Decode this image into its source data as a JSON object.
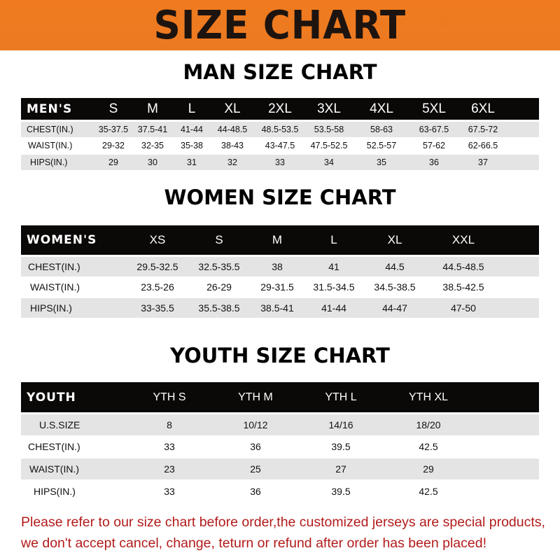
{
  "banner": {
    "title": "SIZE CHART",
    "color": "#ef7b20"
  },
  "men": {
    "title": "MAN SIZE CHART",
    "header": "MEN'S",
    "sizes": [
      "S",
      "M",
      "L",
      "XL",
      "2XL",
      "3XL",
      "4XL",
      "5XL",
      "6XL"
    ],
    "rows": [
      {
        "label": "CHEST(IN.)",
        "values": [
          "35-37.5",
          "37.5-41",
          "41-44",
          "44-48.5",
          "48.5-53.5",
          "53.5-58",
          "58-63",
          "63-67.5",
          "67.5-72"
        ]
      },
      {
        "label": "WAIST(IN.)",
        "values": [
          "29-32",
          "32-35",
          "35-38",
          "38-43",
          "43-47.5",
          "47.5-52.5",
          "52.5-57",
          "57-62",
          "62-66.5"
        ]
      },
      {
        "label": "HIPS(IN.)",
        "values": [
          "29",
          "30",
          "31",
          "32",
          "33",
          "34",
          "35",
          "36",
          "37"
        ]
      }
    ]
  },
  "women": {
    "title": "WOMEN SIZE CHART",
    "header": "WOMEN'S",
    "sizes": [
      "XS",
      "S",
      "M",
      "L",
      "XL",
      "XXL"
    ],
    "rows": [
      {
        "label": "CHEST(IN.)",
        "values": [
          "29.5-32.5",
          "32.5-35.5",
          "38",
          "41",
          "44.5",
          "44.5-48.5"
        ]
      },
      {
        "label": "WAIST(IN.)",
        "values": [
          "23.5-26",
          "26-29",
          "29-31.5",
          "31.5-34.5",
          "34.5-38.5",
          "38.5-42.5"
        ]
      },
      {
        "label": "HIPS(IN.)",
        "values": [
          "33-35.5",
          "35.5-38.5",
          "38.5-41",
          "41-44",
          "44-47",
          "47-50"
        ]
      }
    ]
  },
  "youth": {
    "title": "YOUTH SIZE CHART",
    "header": "YOUTH",
    "sizes": [
      "YTH S",
      "YTH M",
      "YTH L",
      "YTH XL"
    ],
    "rows": [
      {
        "label": "U.S.SIZE",
        "values": [
          "8",
          "10/12",
          "14/16",
          "18/20"
        ]
      },
      {
        "label": "CHEST(IN.)",
        "values": [
          "33",
          "36",
          "39.5",
          "42.5"
        ]
      },
      {
        "label": "WAIST(IN.)",
        "values": [
          "23",
          "25",
          "27",
          "29"
        ]
      },
      {
        "label": "HIPS(IN.)",
        "values": [
          "33",
          "36",
          "39.5",
          "42.5"
        ]
      }
    ]
  },
  "notice": {
    "line1": "Please refer to our size chart before order,the customized jerseys are special products,",
    "line2": "we don't accept cancel, change, teturn or refund after order has been placed!",
    "color": "#b31b1b"
  }
}
